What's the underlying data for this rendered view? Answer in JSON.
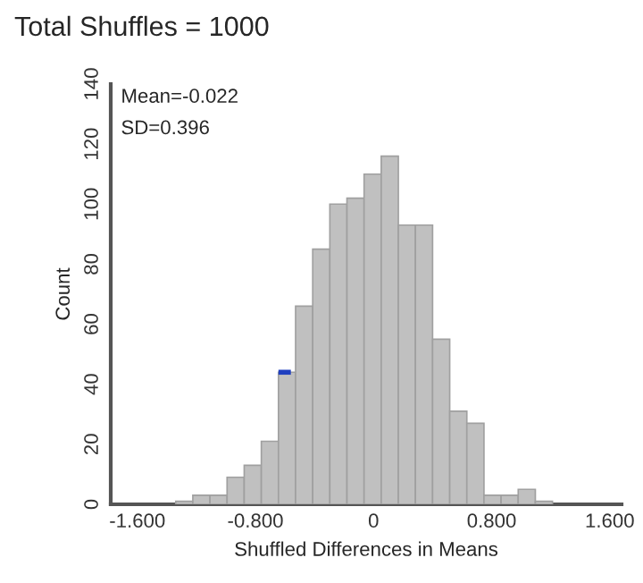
{
  "chart_data": {
    "type": "histogram",
    "title": "Total Shuffles = 1000",
    "xlabel": "Shuffled Differences in Means",
    "ylabel": "Count",
    "bins": [
      -1.34,
      -1.224,
      -1.108,
      -0.992,
      -0.876,
      -0.76,
      -0.644,
      -0.528,
      -0.412,
      -0.296,
      -0.18,
      -0.064,
      0.052,
      0.168,
      0.284,
      0.4,
      0.516,
      0.632,
      0.748,
      0.864,
      0.98,
      1.096,
      1.212
    ],
    "values": [
      1,
      3,
      3,
      9,
      13,
      21,
      44,
      66,
      85,
      100,
      102,
      110,
      116,
      93,
      93,
      55,
      31,
      27,
      3,
      3,
      5,
      1
    ],
    "color": "#c0c0c0",
    "series": [
      {
        "type": "line",
        "x": [
          -0.644,
          -0.56
        ],
        "values": [
          44,
          44
        ],
        "color": "#1f3fbf"
      }
    ],
    "annotations": [
      "Mean=-0.022",
      "SD=0.396"
    ],
    "xlim": [
      -1.78,
      1.68
    ],
    "ylim": [
      0,
      140
    ],
    "xticks": [
      {
        "value": -1.6,
        "label": "-1.600"
      },
      {
        "value": -0.8,
        "label": "-0.800"
      },
      0,
      {
        "value": 0.8,
        "label": "0.800"
      },
      {
        "value": 1.6,
        "label": "1.600"
      }
    ],
    "yticks": [
      0,
      20,
      40,
      60,
      80,
      100,
      120,
      140
    ],
    "grid": false
  }
}
